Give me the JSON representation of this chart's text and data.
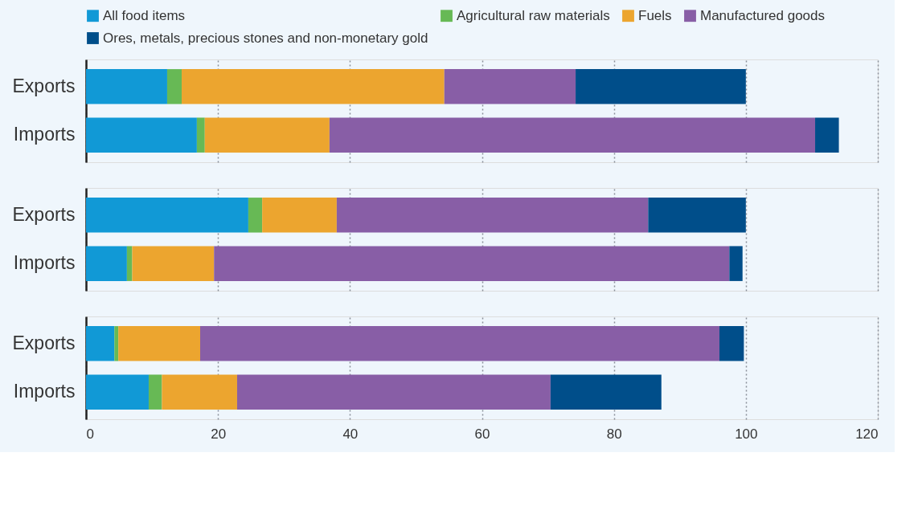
{
  "chart_data": [
    {
      "type": "bar",
      "orientation": "horizontal",
      "stacked": true,
      "categories": [
        "Exports",
        "Imports"
      ],
      "xlim": [
        0,
        120
      ],
      "xticks": [
        0,
        20,
        40,
        60,
        80,
        100,
        120
      ],
      "grid": "x",
      "legend": "top",
      "tick_labels": "y",
      "series": [
        {
          "name": "All food items",
          "color": "#1199d6",
          "values": [
            12.3,
            16.8
          ]
        },
        {
          "name": "Agricultural raw materials",
          "color": "#67b955",
          "values": [
            2.2,
            1.2
          ]
        },
        {
          "name": "Fuels",
          "color": "#eca52f",
          "values": [
            39.8,
            18.9
          ]
        },
        {
          "name": "Manufactured goods",
          "color": "#885ea6",
          "values": [
            19.9,
            73.6
          ]
        },
        {
          "name": "Ores, metals, precious stones and non-monetary gold",
          "color": "#004e8a",
          "values": [
            25.8,
            3.6
          ]
        }
      ]
    },
    {
      "type": "bar",
      "orientation": "horizontal",
      "stacked": true,
      "categories": [
        "Exports",
        "Imports"
      ],
      "xlim": [
        0,
        120
      ],
      "xticks": [
        0,
        20,
        40,
        60,
        80,
        100,
        120
      ],
      "grid": "x",
      "tick_labels": "y",
      "series": [
        {
          "color": "#1199d6",
          "values": [
            24.6,
            6.2
          ]
        },
        {
          "color": "#67b955",
          "values": [
            2.1,
            0.8
          ]
        },
        {
          "color": "#eca52f",
          "values": [
            11.3,
            12.4
          ]
        },
        {
          "color": "#885ea6",
          "values": [
            47.2,
            78.1
          ]
        },
        {
          "color": "#004e8a",
          "values": [
            14.8,
            2.0
          ]
        }
      ]
    },
    {
      "type": "bar",
      "orientation": "horizontal",
      "stacked": true,
      "categories": [
        "Exports",
        "Imports"
      ],
      "xlim": [
        0,
        120
      ],
      "xticks": [
        0,
        20,
        40,
        60,
        80,
        100,
        120
      ],
      "grid": "x",
      "series": [
        {
          "color": "#1199d6",
          "values": [
            4.3,
            9.5
          ]
        },
        {
          "color": "#67b955",
          "values": [
            0.6,
            2.0
          ]
        },
        {
          "color": "#eca52f",
          "values": [
            12.4,
            11.4
          ]
        },
        {
          "color": "#885ea6",
          "values": [
            78.7,
            47.5
          ]
        },
        {
          "color": "#004e8a",
          "values": [
            3.7,
            16.8
          ]
        }
      ]
    }
  ]
}
